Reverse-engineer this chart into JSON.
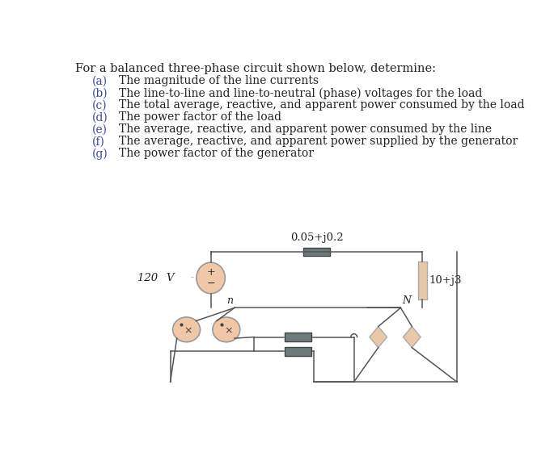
{
  "title_text": "For a balanced three-phase circuit shown below, determine:",
  "items": [
    [
      "(a)",
      "The magnitude of the line currents"
    ],
    [
      "(b)",
      "The line-to-line and line-to-neutral (phase) voltages for the load"
    ],
    [
      "(c)",
      "The total average, reactive, and apparent power consumed by the load"
    ],
    [
      "(d)",
      "The power factor of the load"
    ],
    [
      "(e)",
      "The average, reactive, and apparent power consumed by the line"
    ],
    [
      "(f)",
      "The average, reactive, and apparent power supplied by the generator"
    ],
    [
      "(g)",
      "The power factor of the generator"
    ]
  ],
  "circuit": {
    "voltage_label": "120 V",
    "line_impedance_label": "0.05+j0.2",
    "load_impedance_label": "10+j3",
    "node_gen": "n",
    "node_load": "N",
    "resistor_color": "#6e7b7b",
    "load_resistor_color": "#e8c8a8",
    "source_fill": "#f0c8a8",
    "source_border": "#999999",
    "wire_color": "#555555"
  },
  "text_color": "#3a4a9a",
  "body_color": "#222222",
  "bg_color": "#ffffff",
  "title_fontsize": 10.5,
  "item_fontsize": 10.0,
  "label_fontsize": 9.5
}
